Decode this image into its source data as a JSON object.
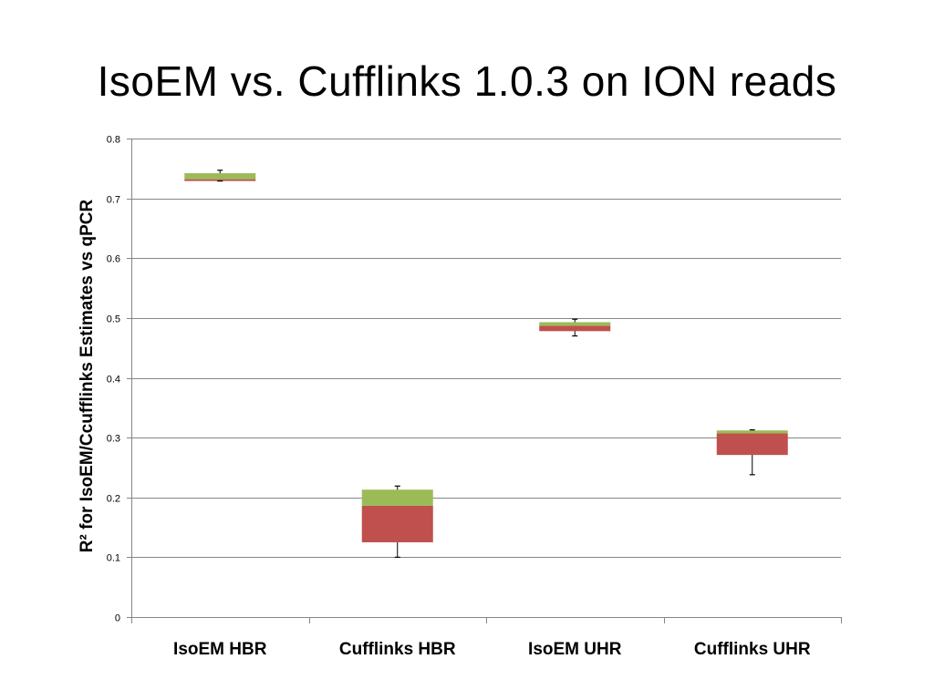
{
  "slide": {
    "title": "IsoEM vs. Cufflinks 1.0.3 on ION reads"
  },
  "chart_data": {
    "type": "box",
    "title": "IsoEM vs. Cufflinks 1.0.3 on ION reads",
    "xlabel": "",
    "ylabel": "R² for IsoEM/Ccufflinks Estimates vs qPCR",
    "ylim": [
      0,
      0.8
    ],
    "yticks": [
      0,
      0.1,
      0.2,
      0.3,
      0.4,
      0.5,
      0.6,
      0.7,
      0.8
    ],
    "ytick_labels": [
      "0",
      "0.1",
      "0.2",
      "0.3",
      "0.4",
      "0.5",
      "0.6",
      "0.7",
      "0.8"
    ],
    "grid": true,
    "legend": "none",
    "colors": {
      "lower_box": "#c0504d",
      "upper_box": "#9bbb59",
      "whisker": "#000000",
      "grid": "#868686"
    },
    "categories": [
      "IsoEM HBR",
      "Cufflinks HBR",
      "IsoEM UHR",
      "Cufflinks UHR"
    ],
    "boxes": [
      {
        "category": "IsoEM HBR",
        "min": 0.729,
        "q1": 0.729,
        "median": 0.732,
        "q3": 0.742,
        "max": 0.747
      },
      {
        "category": "Cufflinks HBR",
        "min": 0.1,
        "q1": 0.125,
        "median": 0.186,
        "q3": 0.213,
        "max": 0.219
      },
      {
        "category": "IsoEM UHR",
        "min": 0.47,
        "q1": 0.478,
        "median": 0.487,
        "q3": 0.493,
        "max": 0.498
      },
      {
        "category": "Cufflinks UHR",
        "min": 0.238,
        "q1": 0.271,
        "median": 0.307,
        "q3": 0.312,
        "max": 0.313
      }
    ]
  }
}
